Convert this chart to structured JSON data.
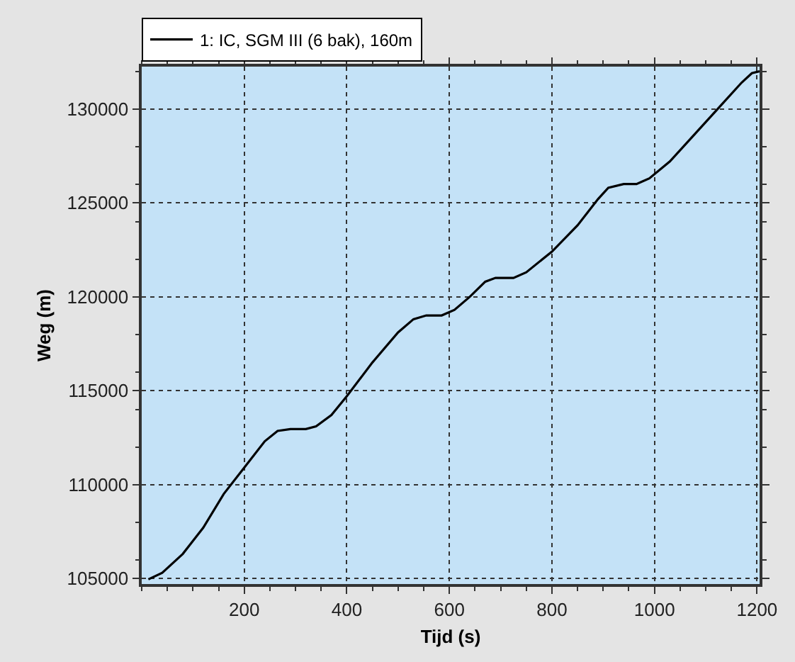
{
  "chart_data": {
    "type": "line",
    "xlabel": "Tijd (s)",
    "ylabel": "Weg (m)",
    "xlim": [
      0,
      1205
    ],
    "xticks": [
      200,
      400,
      600,
      800,
      1000,
      1200
    ],
    "ylim": [
      104700,
      132250
    ],
    "yticks": [
      105000,
      110000,
      115000,
      120000,
      125000,
      130000
    ],
    "grid": true,
    "legend": "top left",
    "line_style": "solid",
    "marker": "none",
    "series": [
      {
        "name": "1: IC, SGM III (6 bak), 160m",
        "color": "#000000",
        "x": [
          13,
          40,
          80,
          120,
          160,
          200,
          240,
          265,
          290,
          320,
          340,
          370,
          400,
          450,
          500,
          530,
          555,
          585,
          610,
          640,
          670,
          690,
          725,
          750,
          800,
          850,
          890,
          910,
          940,
          965,
          990,
          1030,
          1080,
          1130,
          1170,
          1190,
          1205
        ],
        "values": [
          104950,
          105300,
          106300,
          107700,
          109500,
          110900,
          112300,
          112850,
          112950,
          112950,
          113100,
          113700,
          114700,
          116500,
          118100,
          118800,
          119000,
          119000,
          119300,
          120000,
          120800,
          121000,
          121000,
          121300,
          122400,
          123800,
          125200,
          125800,
          126000,
          126000,
          126300,
          127200,
          128700,
          130200,
          131400,
          131900,
          132000
        ]
      }
    ]
  }
}
